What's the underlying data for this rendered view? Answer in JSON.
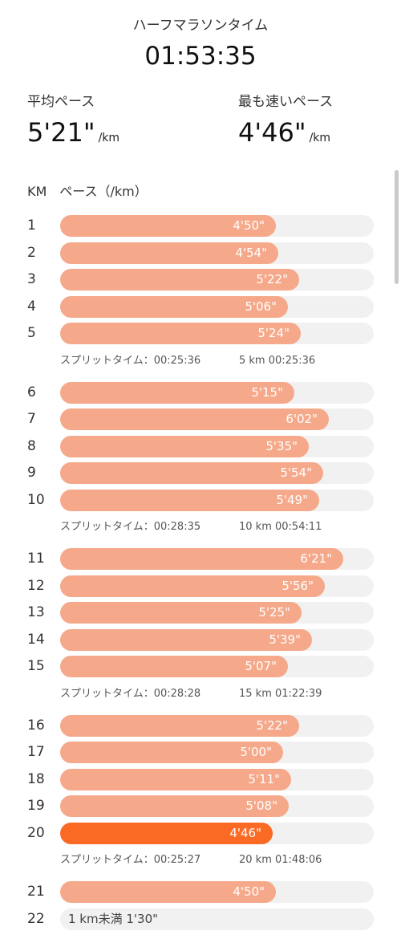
{
  "header": {
    "title": "ハーフマラソンタイム",
    "total_time": "01:53:35"
  },
  "summary": {
    "avg_label": "平均ペース",
    "avg_value": "5'21\"",
    "fast_label": "最も速いペース",
    "fast_value": "4'46\"",
    "unit": "/km"
  },
  "columns": {
    "km": "KM",
    "pace": "ペース（/km）"
  },
  "groups": [
    {
      "rows": [
        {
          "km": "1",
          "pace": "4'50\"",
          "seconds": 290
        },
        {
          "km": "2",
          "pace": "4'54\"",
          "seconds": 294
        },
        {
          "km": "3",
          "pace": "5'22\"",
          "seconds": 322
        },
        {
          "km": "4",
          "pace": "5'06\"",
          "seconds": 306
        },
        {
          "km": "5",
          "pace": "5'24\"",
          "seconds": 324
        }
      ],
      "split": {
        "time": "スプリットタイム：00:25:36",
        "total": "5 km 00:25:36"
      }
    },
    {
      "rows": [
        {
          "km": "6",
          "pace": "5'15\"",
          "seconds": 315
        },
        {
          "km": "7",
          "pace": "6'02\"",
          "seconds": 362
        },
        {
          "km": "8",
          "pace": "5'35\"",
          "seconds": 335
        },
        {
          "km": "9",
          "pace": "5'54\"",
          "seconds": 354
        },
        {
          "km": "10",
          "pace": "5'49\"",
          "seconds": 349
        }
      ],
      "split": {
        "time": "スプリットタイム：00:28:35",
        "total": "10 km 00:54:11"
      }
    },
    {
      "rows": [
        {
          "km": "11",
          "pace": "6'21\"",
          "seconds": 381
        },
        {
          "km": "12",
          "pace": "5'56\"",
          "seconds": 356
        },
        {
          "km": "13",
          "pace": "5'25\"",
          "seconds": 325
        },
        {
          "km": "14",
          "pace": "5'39\"",
          "seconds": 339
        },
        {
          "km": "15",
          "pace": "5'07\"",
          "seconds": 307
        }
      ],
      "split": {
        "time": "スプリットタイム：00:28:28",
        "total": "15 km 01:22:39"
      }
    },
    {
      "rows": [
        {
          "km": "16",
          "pace": "5'22\"",
          "seconds": 322
        },
        {
          "km": "17",
          "pace": "5'00\"",
          "seconds": 300
        },
        {
          "km": "18",
          "pace": "5'11\"",
          "seconds": 311
        },
        {
          "km": "19",
          "pace": "5'08\"",
          "seconds": 308
        },
        {
          "km": "20",
          "pace": "4'46\"",
          "seconds": 286,
          "fastest": true
        }
      ],
      "split": {
        "time": "スプリットタイム：00:25:27",
        "total": "20 km 01:48:06"
      }
    },
    {
      "rows": [
        {
          "km": "21",
          "pace": "4'50\"",
          "seconds": 290
        },
        {
          "km": "22",
          "partial": true,
          "pace": "1 km未満 1'30\""
        }
      ]
    }
  ],
  "colors": {
    "bar": "#f5a98a",
    "bar_fastest": "#fa6a24",
    "track": "#f1f1f1"
  }
}
